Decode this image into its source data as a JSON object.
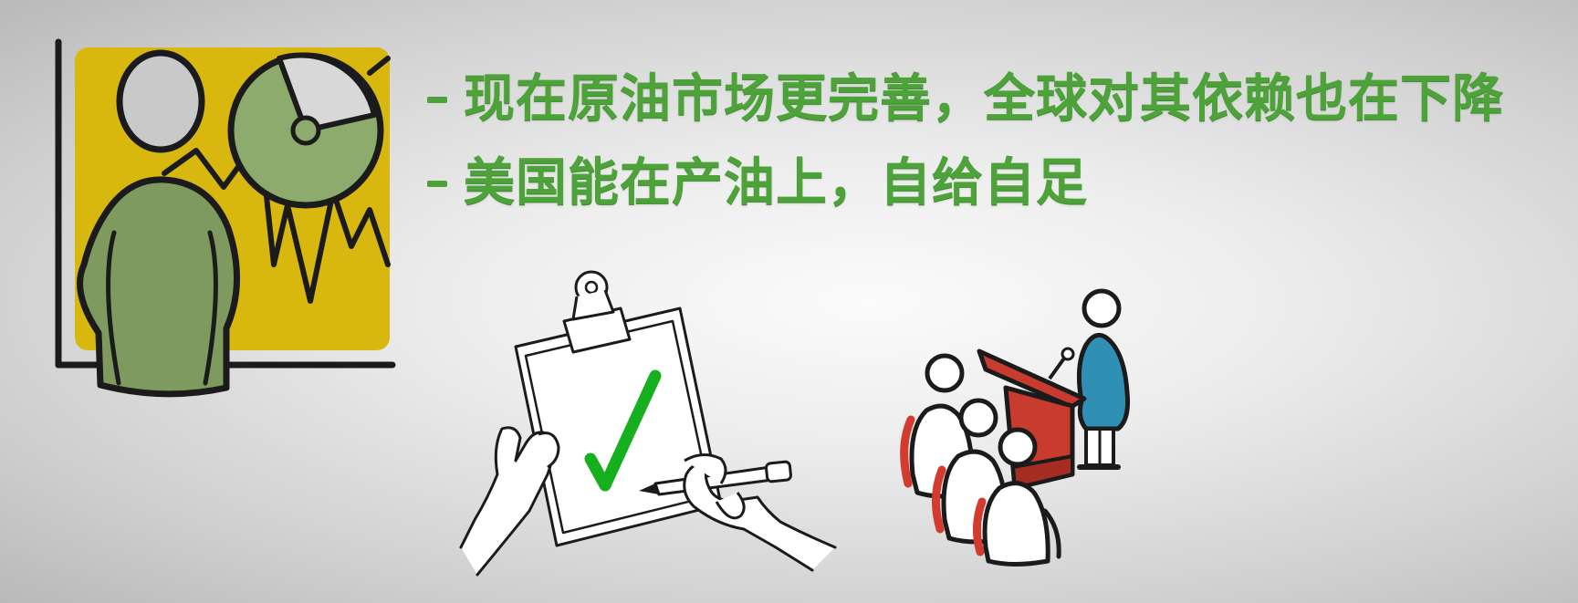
{
  "bullets": [
    {
      "dash": "-",
      "text": "现在原油市场更完善，全球对其依赖也在下降"
    },
    {
      "dash": "-",
      "text": "美国能在产油上，自给自足"
    }
  ],
  "colors": {
    "text_green": "#4da33a",
    "checkmark_green": "#16b01e",
    "board_yellow": "#d8b80e",
    "person_green": "#7f9a5f",
    "podium_red": "#c93b2e",
    "speaker_blue": "#2f8fb5",
    "audience_red": "#d33b2f"
  },
  "icons": {
    "presenter": "presenter-with-chart-icon",
    "clipboard": "clipboard-checkmark-icon",
    "podium": "speaker-podium-audience-icon"
  }
}
